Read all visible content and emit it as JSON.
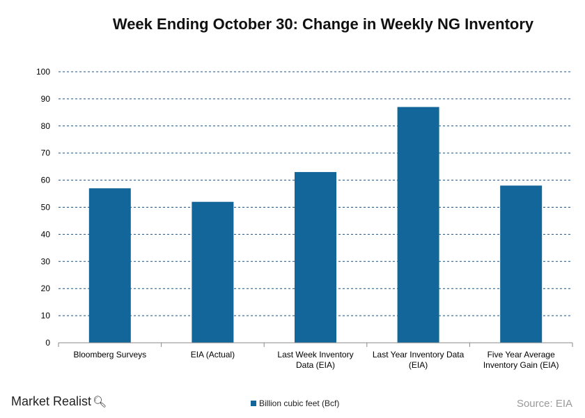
{
  "chart_data": {
    "type": "bar",
    "title": "Week Ending October 30: Change in Weekly NG Inventory",
    "categories": [
      [
        "Bloomberg Surveys"
      ],
      [
        "EIA (Actual)"
      ],
      [
        "Last Week Inventory",
        "Data (EIA)"
      ],
      [
        "Last Year Inventory Data",
        "(EIA)"
      ],
      [
        "Five Year Average",
        "Inventory Gain (EIA)"
      ]
    ],
    "series": [
      {
        "name": "Billion cubic feet (Bcf)",
        "values": [
          57,
          52,
          63,
          87,
          58
        ]
      }
    ],
    "ylim": [
      0,
      100
    ],
    "yticks": [
      0,
      10,
      20,
      30,
      40,
      50,
      60,
      70,
      80,
      90,
      100
    ],
    "grid": true,
    "legend_position": "bottom",
    "bar_color": "#136699"
  },
  "footer": {
    "brand": "Market Realist",
    "brand_icon": "magnifier-icon",
    "source": "Source: EIA"
  }
}
